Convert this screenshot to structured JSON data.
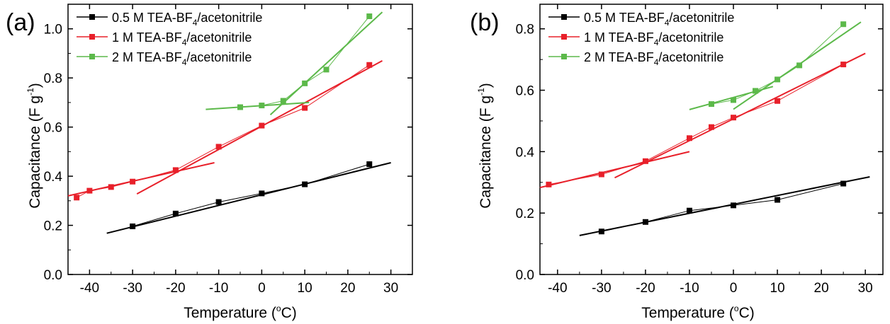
{
  "figure": {
    "panels": [
      {
        "label": "(a)",
        "ylabel_main": "Capacitance (F g",
        "ylabel_sup": "-1",
        "ylabel_close": ")",
        "xlabel_main": "Temperature (",
        "xlabel_sup": "o",
        "xlabel_close": "C)"
      },
      {
        "label": "(b)",
        "ylabel_main": "Capacitance (F g",
        "ylabel_sup": "-1",
        "ylabel_close": ")",
        "xlabel_main": "Temperature (",
        "xlabel_sup": "o",
        "xlabel_close": "C)"
      }
    ]
  },
  "chart_data": [
    {
      "type": "line",
      "panel": "(a)",
      "xlabel": "Temperature (oC)",
      "ylabel": "Capacitance (F g-1)",
      "xlim": [
        -45,
        35
      ],
      "ylim": [
        0.0,
        1.1
      ],
      "xticks": [
        -40,
        -30,
        -20,
        -10,
        0,
        10,
        20,
        30
      ],
      "yticks": [
        0.0,
        0.2,
        0.4,
        0.6,
        0.8,
        1.0
      ],
      "ytick_labels": [
        "0.0",
        "0.2",
        "0.4",
        "0.6",
        "0.8",
        "1.0"
      ],
      "legend_position": "top-left",
      "series": [
        {
          "name_main": "0.5 M TEA-BF",
          "name_sub": "4",
          "name_tail": "/acetonitrile",
          "color": "#000000",
          "x": [
            -30,
            -20,
            -10,
            0,
            10,
            25
          ],
          "y": [
            0.196,
            0.248,
            0.295,
            0.33,
            0.367,
            0.449
          ],
          "fits": [
            {
              "x": [
                -36,
                30
              ],
              "y": [
                0.168,
                0.455
              ]
            }
          ]
        },
        {
          "name_main": "1 M TEA-BF",
          "name_sub": "4",
          "name_tail": "/acetonitrile",
          "color": "#e8202a",
          "x": [
            -43,
            -40,
            -35,
            -30,
            -20,
            -10,
            0,
            10,
            25
          ],
          "y": [
            0.313,
            0.341,
            0.356,
            0.378,
            0.425,
            0.52,
            0.606,
            0.678,
            0.853
          ],
          "fits": [
            {
              "x": [
                -45,
                -11
              ],
              "y": [
                0.32,
                0.455
              ]
            },
            {
              "x": [
                -29,
                28
              ],
              "y": [
                0.328,
                0.87
              ]
            }
          ]
        },
        {
          "name_main": "2 M TEA-BF",
          "name_sub": "4",
          "name_tail": "/acetonitrile",
          "color": "#5cb94a",
          "x": [
            -5,
            0,
            5,
            10,
            15,
            25
          ],
          "y": [
            0.681,
            0.688,
            0.707,
            0.778,
            0.834,
            1.051
          ],
          "fits": [
            {
              "x": [
                -13,
                11
              ],
              "y": [
                0.672,
                0.7
              ]
            },
            {
              "x": [
                2,
                28
              ],
              "y": [
                0.65,
                1.068
              ]
            }
          ]
        }
      ]
    },
    {
      "type": "line",
      "panel": "(b)",
      "xlabel": "Temperature (oC)",
      "ylabel": "Capacitance (F g-1)",
      "xlim": [
        -44,
        34
      ],
      "ylim": [
        0.0,
        0.88
      ],
      "xticks": [
        -40,
        -30,
        -20,
        -10,
        0,
        10,
        20,
        30
      ],
      "yticks": [
        0.0,
        0.2,
        0.4,
        0.6,
        0.8
      ],
      "ytick_labels": [
        "0.0",
        "0.2",
        "0.4",
        "0.6",
        "0.8"
      ],
      "legend_position": "top-left",
      "series": [
        {
          "name_main": "0.5 M TEA-BF",
          "name_sub": "4",
          "name_tail": "/acetonitrile",
          "color": "#000000",
          "x": [
            -30,
            -20,
            -10,
            0,
            10,
            25
          ],
          "y": [
            0.14,
            0.171,
            0.208,
            0.225,
            0.243,
            0.296
          ],
          "fits": [
            {
              "x": [
                -35,
                31
              ],
              "y": [
                0.127,
                0.318
              ]
            }
          ]
        },
        {
          "name_main": "1 M TEA-BF",
          "name_sub": "4",
          "name_tail": "/acetonitrile",
          "color": "#e8202a",
          "x": [
            -42,
            -30,
            -20,
            -10,
            -5,
            0,
            10,
            25
          ],
          "y": [
            0.293,
            0.326,
            0.369,
            0.444,
            0.48,
            0.511,
            0.565,
            0.684
          ],
          "fits": [
            {
              "x": [
                -44,
                -10
              ],
              "y": [
                0.283,
                0.4
              ]
            },
            {
              "x": [
                -27,
                30
              ],
              "y": [
                0.315,
                0.72
              ]
            }
          ]
        },
        {
          "name_main": "2 M TEA-BF",
          "name_sub": "4",
          "name_tail": "/acetonitrile",
          "color": "#5cb94a",
          "x": [
            -5,
            0,
            5,
            10,
            15,
            25
          ],
          "y": [
            0.555,
            0.568,
            0.598,
            0.635,
            0.681,
            0.815
          ],
          "fits": [
            {
              "x": [
                -10,
                9
              ],
              "y": [
                0.537,
                0.612
              ]
            },
            {
              "x": [
                0,
                29
              ],
              "y": [
                0.538,
                0.822
              ]
            }
          ]
        }
      ]
    }
  ]
}
